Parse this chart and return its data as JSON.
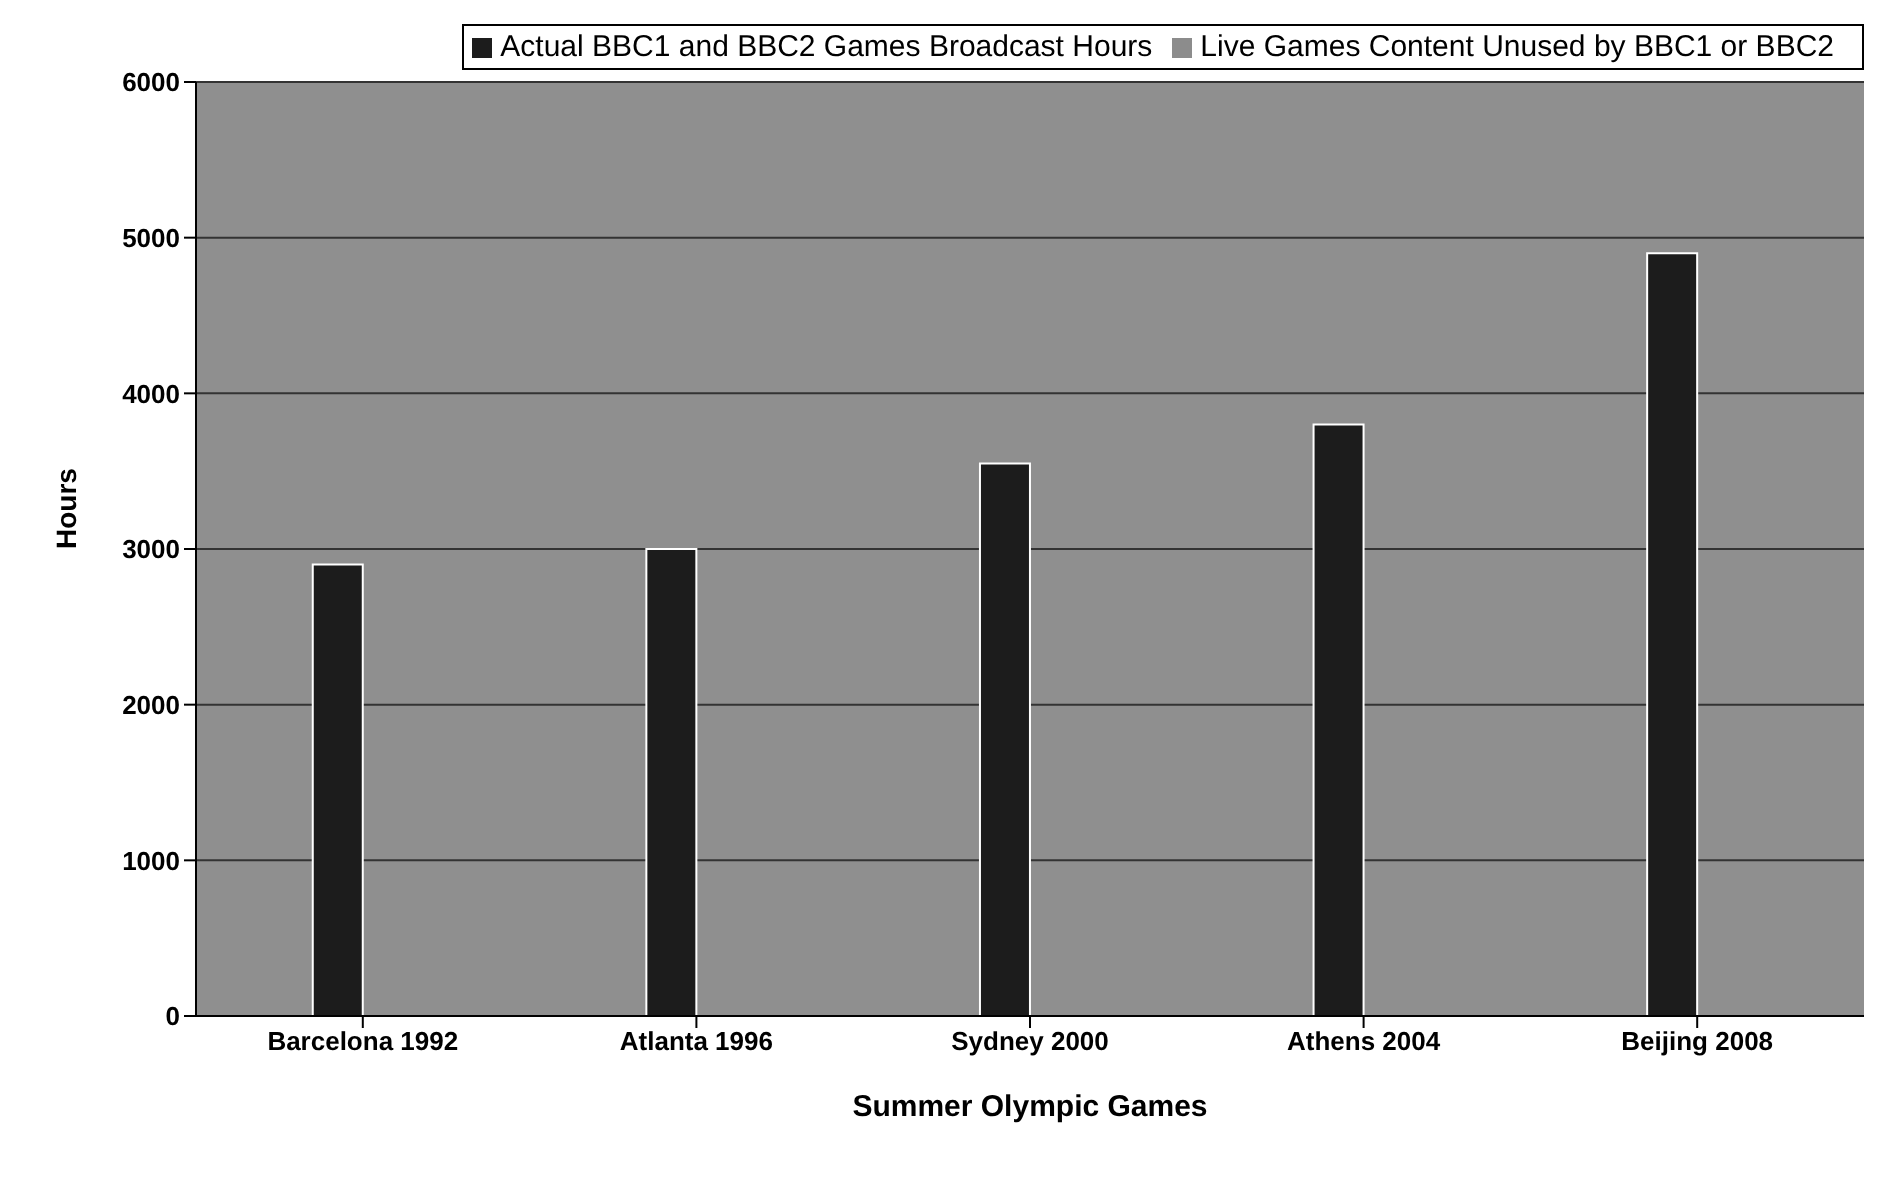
{
  "chart_data": {
    "type": "bar",
    "xlabel": "Summer Olympic Games",
    "ylabel": "Hours",
    "categories": [
      "Barcelona 1992",
      "Atlanta 1996",
      "Sydney 2000",
      "Athens 2004",
      "Beijing 2008"
    ],
    "series": [
      {
        "name": "Actual BBC1 and BBC2 Games Broadcast Hours",
        "color": "#1c1c1c",
        "values": [
          2900,
          3000,
          3550,
          3800,
          4900
        ]
      },
      {
        "name": "Live Games Content Unused by BBC1 or BBC2",
        "color": "#8c8c8c",
        "values": [
          null,
          null,
          null,
          null,
          null
        ]
      }
    ],
    "ylim": [
      0,
      6000
    ],
    "yticks": [
      0,
      1000,
      2000,
      3000,
      4000,
      5000,
      6000
    ],
    "grid": "y",
    "legend": "top"
  }
}
